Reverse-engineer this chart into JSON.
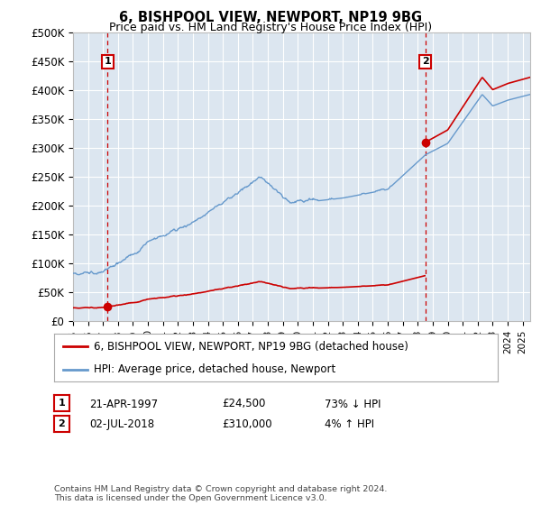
{
  "title": "6, BISHPOOL VIEW, NEWPORT, NP19 9BG",
  "subtitle": "Price paid vs. HM Land Registry's House Price Index (HPI)",
  "plot_bg_color": "#dce6f0",
  "ylim": [
    0,
    500000
  ],
  "yticks": [
    0,
    50000,
    100000,
    150000,
    200000,
    250000,
    300000,
    350000,
    400000,
    450000,
    500000
  ],
  "ytick_labels": [
    "£0",
    "£50K",
    "£100K",
    "£150K",
    "£200K",
    "£250K",
    "£300K",
    "£350K",
    "£400K",
    "£450K",
    "£500K"
  ],
  "xlim_start": 1995.0,
  "xlim_end": 2025.5,
  "transaction1_date": 1997.31,
  "transaction1_price": 24500,
  "transaction2_date": 2018.5,
  "transaction2_price": 310000,
  "line1_label": "6, BISHPOOL VIEW, NEWPORT, NP19 9BG (detached house)",
  "line2_label": "HPI: Average price, detached house, Newport",
  "red_line_color": "#cc0000",
  "blue_line_color": "#6699cc",
  "transaction1_display": "21-APR-1997",
  "transaction1_price_display": "£24,500",
  "transaction1_hpi": "73% ↓ HPI",
  "transaction2_display": "02-JUL-2018",
  "transaction2_price_display": "£310,000",
  "transaction2_hpi": "4% ↑ HPI",
  "footnote": "Contains HM Land Registry data © Crown copyright and database right 2024.\nThis data is licensed under the Open Government Licence v3.0."
}
